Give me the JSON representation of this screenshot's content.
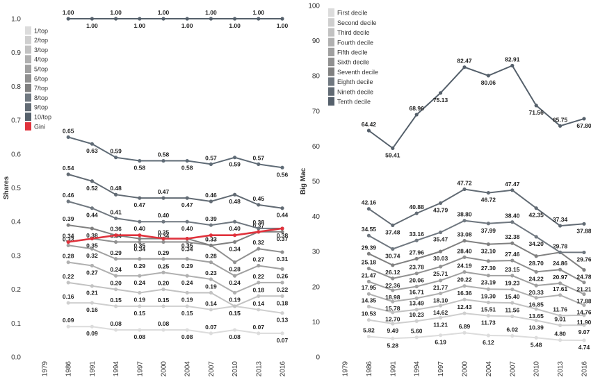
{
  "chart_data": [
    {
      "type": "line",
      "x": [
        "1979",
        "1986",
        "1991",
        "1994",
        "1997",
        "2000",
        "2004",
        "2007",
        "2010",
        "2013",
        "2016"
      ],
      "ylabel": "Shares",
      "ylim": [
        0,
        1.0
      ],
      "yticks": [
        "0.0",
        "0.1",
        "0.2",
        "0.3",
        "0.4",
        "0.5",
        "0.6",
        "0.7",
        "0.8",
        "0.9",
        "1.0"
      ],
      "legend_position": "top-left",
      "series": [
        {
          "name": "1/top",
          "color": "#dcdcdc",
          "values": [
            null,
            0.09,
            0.09,
            0.08,
            0.08,
            0.08,
            0.08,
            0.07,
            0.08,
            0.07,
            0.07
          ],
          "labels": [
            "",
            "0.09",
            "0.09",
            "0.08",
            "0.08",
            "0.08",
            "0.08",
            "0.07",
            "0.08",
            "0.07",
            "0.07"
          ]
        },
        {
          "name": "2/top",
          "color": "#cfcfcf",
          "values": [
            null,
            0.16,
            0.16,
            0.15,
            0.15,
            0.15,
            0.15,
            0.14,
            0.15,
            0.14,
            0.13
          ],
          "labels": [
            "",
            "0.16",
            "0.16",
            "0.15",
            "0.15",
            "0.15",
            "0.15",
            "0.14",
            "0.15",
            "0.14",
            "0.13"
          ]
        },
        {
          "name": "3/top",
          "color": "#c2c2c2",
          "values": [
            null,
            0.22,
            0.21,
            0.2,
            0.19,
            0.2,
            0.19,
            0.19,
            0.15,
            0.18,
            0.18
          ],
          "labels": [
            "",
            "0.22",
            "0.21",
            "0.20",
            "0.19",
            "0.20",
            "0.19",
            "0.19",
            "0.15",
            "0.18",
            "0.18"
          ]
        },
        {
          "name": "4/top",
          "color": "#b0b0b0",
          "values": [
            null,
            0.28,
            0.27,
            0.24,
            0.24,
            0.25,
            0.24,
            0.23,
            0.19,
            0.22,
            0.22
          ],
          "labels": [
            "",
            "0.28",
            "0.27",
            "0.24",
            "0.24",
            "0.25",
            "0.24",
            "0.23",
            "0.19",
            "0.22",
            "0.22"
          ]
        },
        {
          "name": "5/top",
          "color": "#a0a0a0",
          "values": [
            null,
            0.33,
            0.32,
            0.29,
            0.29,
            0.29,
            0.29,
            0.28,
            0.24,
            0.27,
            0.26
          ],
          "labels": [
            "",
            "0.33",
            "0.32",
            "0.29",
            "0.29",
            "0.29",
            "0.29",
            "0.28",
            "0.24",
            "0.27",
            "0.26"
          ]
        },
        {
          "name": "6/top",
          "color": "#909090",
          "values": [
            null,
            0.34,
            0.35,
            0.34,
            0.34,
            0.34,
            0.34,
            0.33,
            0.28,
            0.32,
            0.31
          ],
          "labels": [
            "",
            "0.34",
            "0.35",
            "0.34",
            "0.34",
            "0.34",
            "0.34",
            "0.33",
            "0.28",
            "0.32",
            "0.31"
          ]
        },
        {
          "name": "7/top",
          "color": "#808080",
          "values": [
            null,
            0.39,
            0.38,
            0.36,
            0.35,
            0.35,
            0.35,
            0.33,
            0.34,
            0.37,
            0.37
          ],
          "labels": [
            "",
            "0.39",
            "0.38",
            "0.36",
            "0.35",
            "0.35",
            "0.35",
            "0.33",
            "0.34",
            "0.37",
            "0.37"
          ]
        },
        {
          "name": "8/top",
          "color": "#707880",
          "values": [
            null,
            0.46,
            0.44,
            0.41,
            0.4,
            0.4,
            0.4,
            0.39,
            0.4,
            0.38,
            0.38
          ],
          "labels": [
            "",
            "0.46",
            "0.44",
            "0.41",
            "0.40",
            "0.40",
            "0.40",
            "0.39",
            "0.40",
            "0.38",
            "0.38"
          ]
        },
        {
          "name": "9/top",
          "color": "#626b74",
          "values": [
            null,
            0.54,
            0.52,
            0.48,
            0.47,
            0.47,
            0.47,
            0.46,
            0.48,
            0.45,
            0.44
          ],
          "labels": [
            "",
            "0.54",
            "0.52",
            "0.48",
            "0.47",
            "0.47",
            "0.47",
            "0.46",
            "0.48",
            "0.45",
            "0.44"
          ]
        },
        {
          "name": "10/top",
          "color": "#55606b",
          "values": [
            null,
            1.0,
            1.0,
            1.0,
            1.0,
            1.0,
            1.0,
            1.0,
            1.0,
            1.0,
            1.0
          ],
          "labels": [
            "",
            "1.00",
            "1.00",
            "1.00",
            "1.00",
            "1.00",
            "1.00",
            "1.00",
            "1.00",
            "1.00",
            "1.00"
          ]
        },
        {
          "name": "",
          "color": "#5f6b76",
          "values": [
            null,
            0.65,
            0.63,
            0.59,
            0.58,
            0.58,
            0.58,
            0.57,
            0.59,
            0.57,
            0.56
          ],
          "labels": [
            "",
            "0.65",
            "0.63",
            "0.59",
            "0.58",
            "0.58",
            "0.58",
            "0.57",
            "0.59",
            "0.57",
            "0.56"
          ]
        },
        {
          "name": "Gini",
          "color": "#e0323c",
          "values": [
            null,
            0.34,
            0.35,
            0.36,
            0.36,
            0.35,
            0.35,
            0.36,
            0.36,
            0.37,
            0.38
          ],
          "labels": [
            "",
            "",
            "",
            "",
            "",
            "",
            "",
            "",
            "",
            "",
            ""
          ]
        }
      ]
    },
    {
      "type": "line",
      "x": [
        "1979",
        "1986",
        "1991",
        "1994",
        "1997",
        "2000",
        "2004",
        "2007",
        "2010",
        "2013",
        "2016"
      ],
      "ylabel": "Big Mac",
      "ylim": [
        0,
        100
      ],
      "yticks": [
        "0",
        "10",
        "20",
        "30",
        "40",
        "50",
        "60",
        "70",
        "80",
        "90",
        "100"
      ],
      "legend_position": "top-left",
      "series": [
        {
          "name": "First decile",
          "color": "#dcdcdc",
          "values": [
            null,
            5.82,
            5.28,
            5.6,
            6.19,
            6.89,
            6.12,
            6.02,
            5.48,
            4.8,
            4.74
          ],
          "labels": [
            "",
            "5.82",
            "5.28",
            "5.60",
            "6.19",
            "6.89",
            "6.12",
            "6.02",
            "5.48",
            "4.80",
            "4.74"
          ]
        },
        {
          "name": "Second decile",
          "color": "#cfcfcf",
          "values": [
            null,
            10.53,
            9.49,
            10.23,
            11.21,
            12.43,
            11.73,
            11.56,
            10.39,
            9.01,
            9.07
          ],
          "labels": [
            "",
            "10.53",
            "9.49",
            "10.23",
            "11.21",
            "12.43",
            "11.73",
            "11.56",
            "10.39",
            "9.01",
            "9.07"
          ]
        },
        {
          "name": "Third decile",
          "color": "#c2c2c2",
          "values": [
            null,
            14.35,
            12.7,
            13.49,
            14.62,
            16.36,
            15.51,
            15.4,
            13.65,
            11.76,
            11.9
          ],
          "labels": [
            "",
            "14.35",
            "12.70",
            "13.49",
            "14.62",
            "16.36",
            "15.51",
            "15.40",
            "13.65",
            "11.76",
            "11.90"
          ]
        },
        {
          "name": "Fourth decile",
          "color": "#b0b0b0",
          "values": [
            null,
            17.95,
            15.78,
            16.71,
            18.1,
            20.22,
            19.3,
            19.23,
            16.85,
            17.61,
            14.76
          ],
          "labels": [
            "",
            "17.95",
            "15.78",
            "16.71",
            "18.10",
            "20.22",
            "19.30",
            "19.23",
            "16.85",
            "17.61",
            "14.76"
          ]
        },
        {
          "name": "Fifth decile",
          "color": "#a0a0a0",
          "values": [
            null,
            21.47,
            18.98,
            20.06,
            21.77,
            24.19,
            23.19,
            23.15,
            20.33,
            20.97,
            17.88
          ],
          "labels": [
            "",
            "21.47",
            "18.98",
            "20.06",
            "21.77",
            "24.19",
            "23.19",
            "23.15",
            "20.33",
            "20.97",
            "17.88"
          ]
        },
        {
          "name": "Sixth decile",
          "color": "#909090",
          "values": [
            null,
            25.18,
            22.36,
            23.78,
            25.71,
            28.4,
            27.3,
            27.46,
            24.22,
            24.86,
            21.21
          ],
          "labels": [
            "",
            "25.18",
            "22.36",
            "23.78",
            "25.71",
            "28.40",
            "27.30",
            "27.46",
            "24.22",
            "24.86",
            "21.21"
          ]
        },
        {
          "name": "Seventh decile",
          "color": "#808080",
          "values": [
            null,
            29.39,
            26.12,
            27.96,
            30.03,
            33.08,
            32.1,
            32.38,
            28.7,
            29.78,
            24.78
          ],
          "labels": [
            "",
            "29.39",
            "26.12",
            "27.96",
            "30.03",
            "33.08",
            "32.10",
            "32.38",
            "28.70",
            "29.78",
            "24.78"
          ]
        },
        {
          "name": "Eighth decile",
          "color": "#707880",
          "values": [
            null,
            34.55,
            30.74,
            33.16,
            35.47,
            38.8,
            37.99,
            38.4,
            34.2,
            29.78,
            29.76
          ],
          "labels": [
            "",
            "34.55",
            "30.74",
            "33.16",
            "35.47",
            "38.80",
            "37.99",
            "38.40",
            "34.20",
            "",
            "29.76"
          ]
        },
        {
          "name": "Nineth decile",
          "color": "#626b74",
          "values": [
            null,
            42.16,
            37.48,
            40.88,
            43.79,
            47.72,
            46.72,
            47.47,
            42.35,
            37.34,
            37.88
          ],
          "labels": [
            "",
            "42.16",
            "37.48",
            "40.88",
            "43.79",
            "47.72",
            "46.72",
            "47.47",
            "42.35",
            "37.34",
            "37.88"
          ]
        },
        {
          "name": "Tenth decile",
          "color": "#55606b",
          "values": [
            null,
            64.42,
            59.41,
            68.96,
            75.13,
            82.47,
            80.06,
            82.91,
            71.56,
            65.75,
            67.8
          ],
          "labels": [
            "",
            "64.42",
            "59.41",
            "68.96",
            "75.13",
            "82.47",
            "80.06",
            "82.91",
            "71.56",
            "65.75",
            "67.80"
          ]
        }
      ]
    }
  ]
}
